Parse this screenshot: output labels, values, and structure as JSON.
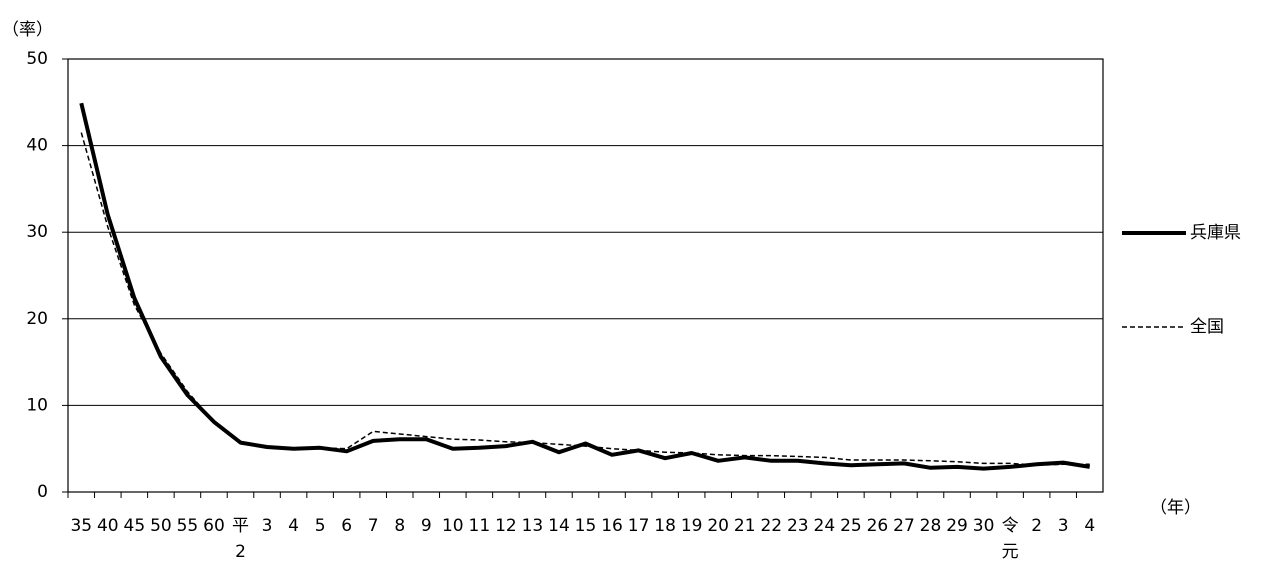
{
  "chart_data": {
    "type": "line",
    "y_label": "（率）",
    "x_label": "（年）",
    "categories": [
      "35",
      "40",
      "45",
      "50",
      "55",
      "60",
      "平\n2",
      "3",
      "4",
      "5",
      "6",
      "7",
      "8",
      "9",
      "10",
      "11",
      "12",
      "13",
      "14",
      "15",
      "16",
      "17",
      "18",
      "19",
      "20",
      "21",
      "22",
      "23",
      "24",
      "25",
      "26",
      "27",
      "28",
      "29",
      "30",
      "令\n元",
      "2",
      "3",
      "4"
    ],
    "series": [
      {
        "name": "兵庫県",
        "color": "#000000",
        "style": "solid",
        "values": [
          44.9,
          32.0,
          22.4,
          15.6,
          11.2,
          8.1,
          5.7,
          5.2,
          5.0,
          5.1,
          4.7,
          5.9,
          6.1,
          6.1,
          5.0,
          5.1,
          5.3,
          5.8,
          4.6,
          5.6,
          4.3,
          4.8,
          3.9,
          4.5,
          3.6,
          4.0,
          3.6,
          3.6,
          3.3,
          3.1,
          3.2,
          3.3,
          2.8,
          2.9,
          2.7,
          2.9,
          3.2,
          3.4,
          2.9
        ]
      },
      {
        "name": "全国",
        "color": "#000000",
        "style": "dashed",
        "values": [
          41.5,
          30.6,
          21.6,
          16.0,
          11.6,
          8.1,
          5.7,
          5.2,
          5.0,
          5.1,
          5.0,
          7.0,
          6.7,
          6.4,
          6.1,
          6.0,
          5.8,
          5.7,
          5.5,
          5.3,
          5.0,
          4.8,
          4.6,
          4.5,
          4.3,
          4.2,
          4.2,
          4.1,
          4.0,
          3.7,
          3.7,
          3.7,
          3.6,
          3.5,
          3.3,
          3.3,
          3.1,
          3.2,
          3.2
        ]
      }
    ],
    "ylim": [
      0,
      50
    ],
    "yticks": [
      0,
      10,
      20,
      30,
      40,
      50
    ],
    "grid": true,
    "legend": "right"
  }
}
